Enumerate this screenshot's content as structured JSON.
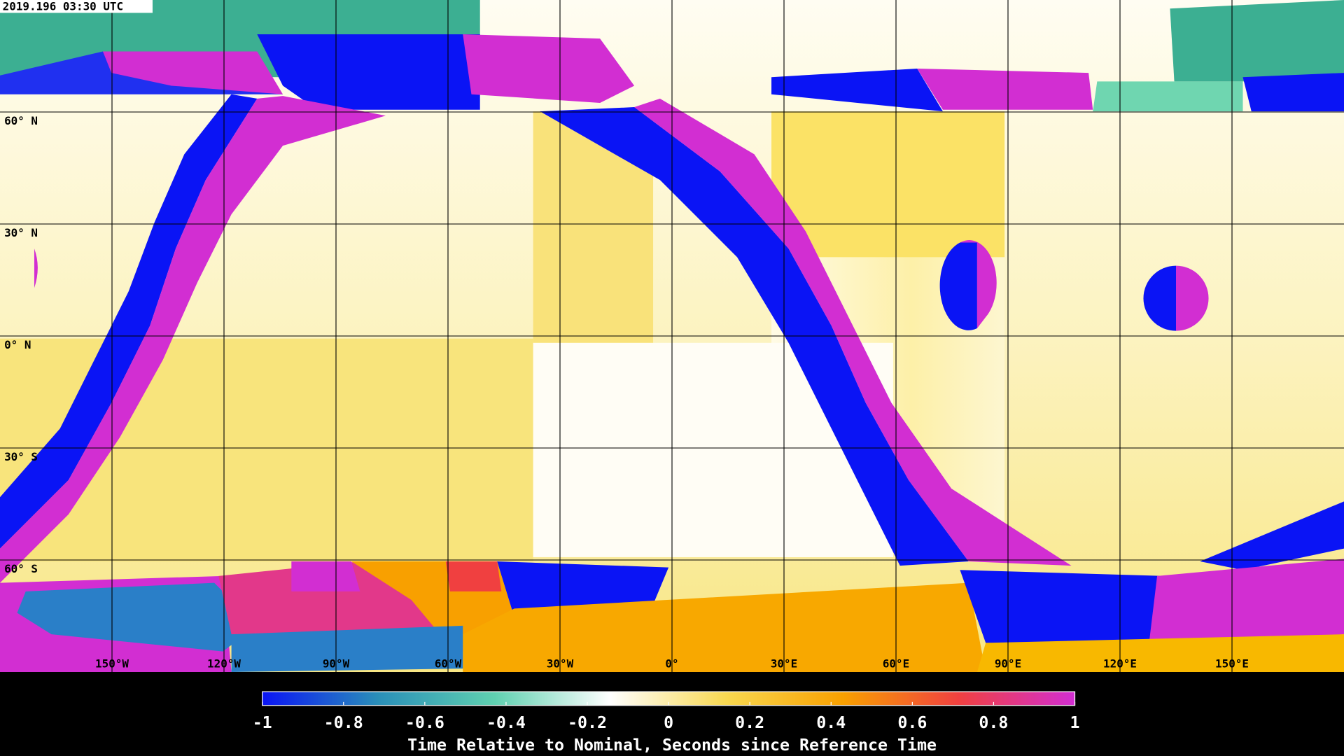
{
  "timestamp": "2019.196 03:30 UTC",
  "map": {
    "lat_labels": [
      "60° N",
      "30° N",
      "0° N",
      "30° S",
      "60° S"
    ],
    "lon_labels": [
      "150°W",
      "120°W",
      "90°W",
      "60°W",
      "30°W",
      "0°",
      "30°E",
      "60°E",
      "90°E",
      "120°E",
      "150°E"
    ]
  },
  "colorbar": {
    "label": "Time Relative to Nominal, Seconds since Reference Time",
    "range": [
      -1,
      1
    ],
    "ticks": [
      -1,
      -0.8,
      -0.6,
      -0.4,
      -0.2,
      0,
      0.2,
      0.4,
      0.6,
      0.8,
      1
    ],
    "colors": [
      "#0a14f5",
      "#2a8fb8",
      "#5fd0b0",
      "#ffffff",
      "#f8d850",
      "#f8a000",
      "#f04040",
      "#d22ed2"
    ]
  }
}
